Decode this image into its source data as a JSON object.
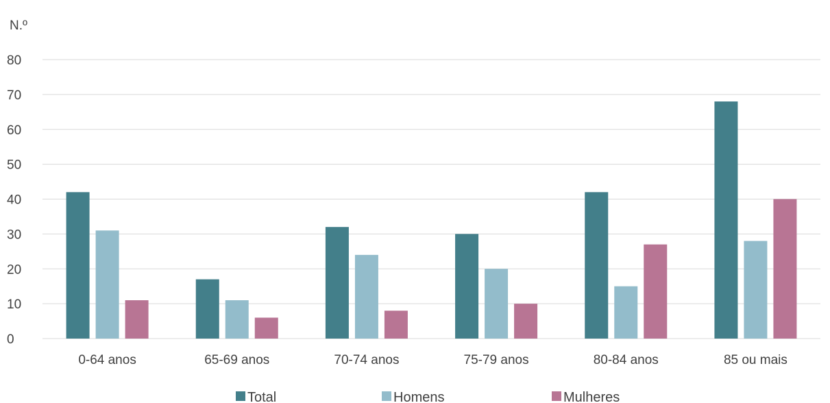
{
  "chart_data": {
    "type": "bar",
    "ylabel": "N.º",
    "ylim": [
      0,
      80
    ],
    "yticks": [
      0,
      10,
      20,
      30,
      40,
      50,
      60,
      70,
      80
    ],
    "grid": true,
    "legend_position": "bottom",
    "categories": [
      "0-64 anos",
      "65-69 anos",
      "70-74 anos",
      "75-79 anos",
      "80-84 anos",
      "85 ou mais"
    ],
    "series": [
      {
        "name": "Total",
        "color": "#437f8a",
        "values": [
          42,
          17,
          32,
          30,
          42,
          68
        ]
      },
      {
        "name": "Homens",
        "color": "#93bccb",
        "values": [
          31,
          11,
          24,
          20,
          15,
          28
        ]
      },
      {
        "name": "Mulheres",
        "color": "#b87594",
        "values": [
          11,
          6,
          8,
          10,
          27,
          40
        ]
      }
    ]
  }
}
